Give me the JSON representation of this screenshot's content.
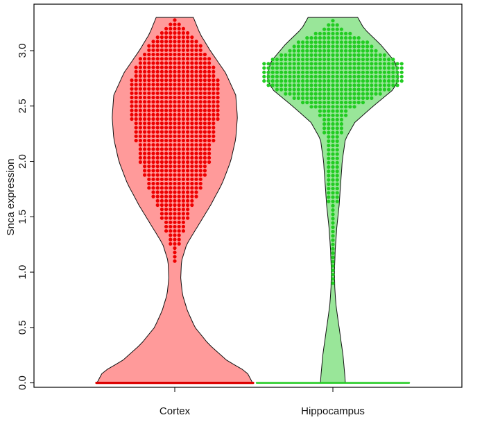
{
  "chart_data": {
    "type": "violin",
    "ylabel": "Snca expression",
    "xlabel": "",
    "title": "",
    "ylim": [
      -0.04,
      3.42
    ],
    "y_ticks": [
      0.0,
      0.5,
      1.0,
      1.5,
      2.0,
      2.5,
      3.0
    ],
    "y_tick_labels": [
      "0.0",
      "0.5",
      "1.0",
      "1.5",
      "2.0",
      "2.5",
      "3.0"
    ],
    "categories": [
      "Cortex",
      "Hippocampus"
    ],
    "series": [
      {
        "category": "Cortex",
        "fill": "#ff9a9a",
        "point_color": "#ee0000",
        "zero_line_color": "#dd0000",
        "y_range": [
          0.0,
          3.3
        ],
        "density": [
          [
            0.0,
            0.92
          ],
          [
            0.1,
            0.85
          ],
          [
            0.2,
            0.62
          ],
          [
            0.35,
            0.4
          ],
          [
            0.5,
            0.24
          ],
          [
            0.65,
            0.15
          ],
          [
            0.8,
            0.09
          ],
          [
            0.95,
            0.07
          ],
          [
            1.1,
            0.08
          ],
          [
            1.25,
            0.14
          ],
          [
            1.4,
            0.26
          ],
          [
            1.6,
            0.42
          ],
          [
            1.8,
            0.56
          ],
          [
            2.0,
            0.66
          ],
          [
            2.2,
            0.72
          ],
          [
            2.4,
            0.74
          ],
          [
            2.6,
            0.72
          ],
          [
            2.8,
            0.6
          ],
          [
            3.0,
            0.42
          ],
          [
            3.15,
            0.3
          ],
          [
            3.3,
            0.22
          ]
        ],
        "point_profile": [
          [
            1.1,
            0.02
          ],
          [
            1.25,
            0.05
          ],
          [
            1.4,
            0.12
          ],
          [
            1.6,
            0.22
          ],
          [
            1.8,
            0.33
          ],
          [
            2.0,
            0.42
          ],
          [
            2.2,
            0.46
          ],
          [
            2.4,
            0.52
          ],
          [
            2.6,
            0.54
          ],
          [
            2.8,
            0.5
          ],
          [
            3.0,
            0.36
          ],
          [
            3.15,
            0.2
          ],
          [
            3.28,
            0.04
          ]
        ]
      },
      {
        "category": "Hippocampus",
        "fill": "#99e699",
        "point_color": "#22cc22",
        "zero_line_color": "#22cc22",
        "y_range": [
          0.0,
          3.3
        ],
        "density": [
          [
            0.0,
            0.16
          ],
          [
            0.1,
            0.15
          ],
          [
            0.25,
            0.13
          ],
          [
            0.4,
            0.1
          ],
          [
            0.55,
            0.07
          ],
          [
            0.7,
            0.04
          ],
          [
            0.85,
            0.025
          ],
          [
            1.0,
            0.02
          ],
          [
            1.2,
            0.03
          ],
          [
            1.4,
            0.05
          ],
          [
            1.6,
            0.08
          ],
          [
            1.8,
            0.1
          ],
          [
            2.0,
            0.12
          ],
          [
            2.2,
            0.16
          ],
          [
            2.35,
            0.28
          ],
          [
            2.5,
            0.52
          ],
          [
            2.65,
            0.78
          ],
          [
            2.75,
            0.85
          ],
          [
            2.9,
            0.8
          ],
          [
            3.05,
            0.62
          ],
          [
            3.2,
            0.4
          ],
          [
            3.3,
            0.32
          ]
        ],
        "point_profile": [
          [
            0.9,
            0.01
          ],
          [
            1.1,
            0.015
          ],
          [
            1.3,
            0.02
          ],
          [
            1.5,
            0.05
          ],
          [
            1.7,
            0.06
          ],
          [
            1.9,
            0.07
          ],
          [
            2.1,
            0.08
          ],
          [
            2.3,
            0.12
          ],
          [
            2.45,
            0.2
          ],
          [
            2.55,
            0.45
          ],
          [
            2.7,
            0.88
          ],
          [
            2.8,
            0.92
          ],
          [
            2.9,
            0.88
          ],
          [
            3.0,
            0.6
          ],
          [
            3.1,
            0.42
          ],
          [
            3.2,
            0.12
          ],
          [
            3.28,
            0.04
          ]
        ]
      }
    ]
  }
}
